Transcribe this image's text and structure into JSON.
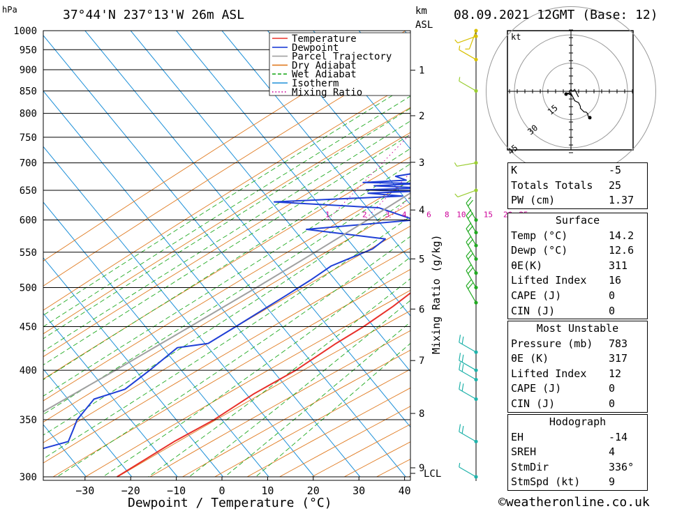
{
  "header": {
    "location": "37°44'N  237°13'W  26m  ASL",
    "datetime": "08.09.2021  12GMT  (Base: 12)",
    "p_unit": "hPa",
    "km_unit_1": "km",
    "km_unit_2": "ASL"
  },
  "footer": {
    "credit": "©weatheronline.co.uk"
  },
  "chart_data": {
    "type": "line",
    "chart_kind": "skew-T log-P sounding",
    "xlabel": "Dewpoint / Temperature (°C)",
    "ylabel": "hPa",
    "mixing_ratio_label": "Mixing Ratio (g/kg)",
    "x_ticks": [
      -30,
      -20,
      -10,
      0,
      10,
      20,
      30,
      40
    ],
    "pressure_ticks": [
      300,
      350,
      400,
      450,
      500,
      550,
      600,
      650,
      700,
      750,
      800,
      850,
      900,
      950,
      1000
    ],
    "km_ticks": [
      1,
      2,
      3,
      4,
      5,
      6,
      7,
      8,
      9
    ],
    "lcl_label": "LCL",
    "mixing_ratio_values": [
      "1",
      "2",
      "3",
      "4",
      "6",
      "8",
      "10",
      "15",
      "20",
      "25"
    ],
    "legend": [
      "Temperature",
      "Dewpoint",
      "Parcel Trajectory",
      "Dry Adiabat",
      "Wet Adiabat",
      "Isotherm",
      "Mixing Ratio"
    ],
    "colors": {
      "temperature": "#e8302a",
      "dewpoint": "#1f3fd6",
      "parcel": "#a0a0a0",
      "dry_adiabat": "#e07a20",
      "wet_adiabat": "#22aa22",
      "isotherm": "#1e90d8",
      "mixing_ratio": "#cc0099"
    },
    "series": [
      {
        "name": "Temperature",
        "points": [
          [
            1000,
            14.2
          ],
          [
            990,
            13.5
          ],
          [
            985,
            13.8
          ],
          [
            975,
            22.8
          ],
          [
            960,
            24.8
          ],
          [
            940,
            25.5
          ],
          [
            925,
            27.2
          ],
          [
            915,
            27.6
          ],
          [
            900,
            26.2
          ],
          [
            870,
            24.5
          ],
          [
            850,
            23.5
          ],
          [
            830,
            23.0
          ],
          [
            800,
            22.2
          ],
          [
            775,
            21.3
          ],
          [
            750,
            19.5
          ],
          [
            725,
            18.3
          ],
          [
            700,
            17.0
          ],
          [
            680,
            17.3
          ],
          [
            660,
            17.8
          ],
          [
            640,
            17.5
          ],
          [
            620,
            16.3
          ],
          [
            600,
            15.0
          ],
          [
            575,
            14.2
          ],
          [
            550,
            12.7
          ],
          [
            525,
            11.4
          ],
          [
            500,
            8.8
          ],
          [
            475,
            6.8
          ],
          [
            450,
            4.0
          ],
          [
            430,
            1.0
          ],
          [
            400,
            -3.0
          ],
          [
            375,
            -8.0
          ],
          [
            350,
            -12.0
          ],
          [
            330,
            -16.8
          ],
          [
            300,
            -23.0
          ]
        ]
      },
      {
        "name": "Dewpoint",
        "points": [
          [
            1000,
            12.6
          ],
          [
            990,
            12.7
          ],
          [
            985,
            12.0
          ],
          [
            975,
            6.8
          ],
          [
            965,
            5.5
          ],
          [
            955,
            7.8
          ],
          [
            940,
            3.5
          ],
          [
            930,
            1.5
          ],
          [
            925,
            -11.0
          ],
          [
            920,
            -8.0
          ],
          [
            915,
            -18.0
          ],
          [
            910,
            -5.0
          ],
          [
            905,
            3.5
          ],
          [
            890,
            4.6
          ],
          [
            870,
            4.5
          ],
          [
            850,
            2.6
          ],
          [
            830,
            2.3
          ],
          [
            820,
            -11.0
          ],
          [
            800,
            -12.5
          ],
          [
            790,
            -16.0
          ],
          [
            780,
            -1.5
          ],
          [
            760,
            -4.0
          ],
          [
            750,
            -0.5
          ],
          [
            720,
            -1.3
          ],
          [
            700,
            -7.7
          ],
          [
            690,
            -6.5
          ],
          [
            675,
            -16.0
          ],
          [
            668,
            -13.0
          ],
          [
            664,
            -22.0
          ],
          [
            662,
            -9.0
          ],
          [
            658,
            -19.0
          ],
          [
            654,
            -8.0
          ],
          [
            651,
            -20.0
          ],
          [
            648,
            -10.0
          ],
          [
            645,
            -19.0
          ],
          [
            640,
            -11.0
          ],
          [
            630,
            -38.0
          ],
          [
            620,
            -14.0
          ],
          [
            600,
            -4.0
          ],
          [
            585,
            -26.0
          ],
          [
            570,
            -7.0
          ],
          [
            555,
            -8.0
          ],
          [
            530,
            -14.0
          ],
          [
            510,
            -16.0
          ],
          [
            490,
            -18.5
          ],
          [
            450,
            -24.0
          ],
          [
            430,
            -27.0
          ],
          [
            425,
            -33.0
          ],
          [
            400,
            -35.0
          ],
          [
            380,
            -37.0
          ],
          [
            370,
            -42.0
          ],
          [
            350,
            -42.0
          ],
          [
            340,
            -41.0
          ],
          [
            330,
            -40.0
          ],
          [
            320,
            -47.0
          ],
          [
            300,
            -59.0
          ]
        ]
      },
      {
        "name": "Parcel Trajectory",
        "points": [
          [
            1000,
            14.2
          ],
          [
            985,
            13.3
          ],
          [
            950,
            11.4
          ],
          [
            900,
            8.6
          ],
          [
            850,
            5.6
          ],
          [
            800,
            2.4
          ],
          [
            750,
            -1.0
          ],
          [
            700,
            -4.9
          ],
          [
            650,
            -9.3
          ],
          [
            600,
            -14.3
          ],
          [
            550,
            -20.0
          ],
          [
            500,
            -26.5
          ],
          [
            450,
            -34.0
          ],
          [
            400,
            -42.5
          ],
          [
            350,
            -52.5
          ],
          [
            300,
            -63.0
          ]
        ]
      }
    ],
    "wind_barbs": [
      {
        "p": 1000,
        "dir_deg": 200,
        "speed_kt": 5
      },
      {
        "p": 985,
        "dir_deg": 250,
        "speed_kt": 5
      },
      {
        "p": 925,
        "dir_deg": 300,
        "speed_kt": 5
      },
      {
        "p": 850,
        "dir_deg": 300,
        "speed_kt": 5
      },
      {
        "p": 700,
        "dir_deg": 260,
        "speed_kt": 5
      },
      {
        "p": 650,
        "dir_deg": 250,
        "speed_kt": 5
      },
      {
        "p": 600,
        "dir_deg": 330,
        "speed_kt": 10
      },
      {
        "p": 580,
        "dir_deg": 330,
        "speed_kt": 10
      },
      {
        "p": 560,
        "dir_deg": 330,
        "speed_kt": 10
      },
      {
        "p": 540,
        "dir_deg": 330,
        "speed_kt": 10
      },
      {
        "p": 520,
        "dir_deg": 330,
        "speed_kt": 10
      },
      {
        "p": 500,
        "dir_deg": 330,
        "speed_kt": 10
      },
      {
        "p": 480,
        "dir_deg": 330,
        "speed_kt": 10
      },
      {
        "p": 420,
        "dir_deg": 300,
        "speed_kt": 10
      },
      {
        "p": 400,
        "dir_deg": 300,
        "speed_kt": 10
      },
      {
        "p": 390,
        "dir_deg": 300,
        "speed_kt": 10
      },
      {
        "p": 370,
        "dir_deg": 300,
        "speed_kt": 10
      },
      {
        "p": 330,
        "dir_deg": 300,
        "speed_kt": 10
      },
      {
        "p": 300,
        "dir_deg": 300,
        "speed_kt": 5
      }
    ],
    "hodograph": {
      "unit_label": "kt",
      "rings": [
        15,
        30,
        45
      ],
      "points_uv": [
        [
          4,
          -3
        ],
        [
          3,
          -1
        ],
        [
          2,
          1
        ],
        [
          1,
          0
        ],
        [
          0,
          1
        ],
        [
          -1,
          0
        ],
        [
          0,
          -2
        ],
        [
          -2,
          -1
        ],
        [
          0,
          -1
        ],
        [
          2,
          -5
        ],
        [
          4,
          -6
        ],
        [
          5,
          -8
        ],
        [
          5,
          -9
        ],
        [
          6,
          -10
        ],
        [
          7,
          -11
        ],
        [
          8,
          -11
        ],
        [
          9,
          -12
        ],
        [
          9,
          -13
        ],
        [
          10,
          -14
        ]
      ]
    }
  },
  "indices": {
    "rows": [
      {
        "label": "K",
        "value": "-5"
      },
      {
        "label": "Totals Totals",
        "value": "25"
      },
      {
        "label": "PW (cm)",
        "value": "1.37"
      }
    ]
  },
  "surface": {
    "title": "Surface",
    "rows": [
      {
        "label": "Temp (°C)",
        "value": "14.2"
      },
      {
        "label": "Dewp (°C)",
        "value": "12.6"
      },
      {
        "label": "θE(K)",
        "value": "311"
      },
      {
        "label": "Lifted Index",
        "value": "16"
      },
      {
        "label": "CAPE (J)",
        "value": "0"
      },
      {
        "label": "CIN (J)",
        "value": "0"
      }
    ]
  },
  "most_unstable": {
    "title": "Most Unstable",
    "rows": [
      {
        "label": "Pressure (mb)",
        "value": "783"
      },
      {
        "label": "θE (K)",
        "value": "317"
      },
      {
        "label": "Lifted Index",
        "value": "12"
      },
      {
        "label": "CAPE (J)",
        "value": "0"
      },
      {
        "label": "CIN (J)",
        "value": "0"
      }
    ]
  },
  "hodograph_params": {
    "title": "Hodograph",
    "rows": [
      {
        "label": "EH",
        "value": "-14"
      },
      {
        "label": "SREH",
        "value": "4"
      },
      {
        "label": "StmDir",
        "value": "336°"
      },
      {
        "label": "StmSpd (kt)",
        "value": "9"
      }
    ]
  }
}
